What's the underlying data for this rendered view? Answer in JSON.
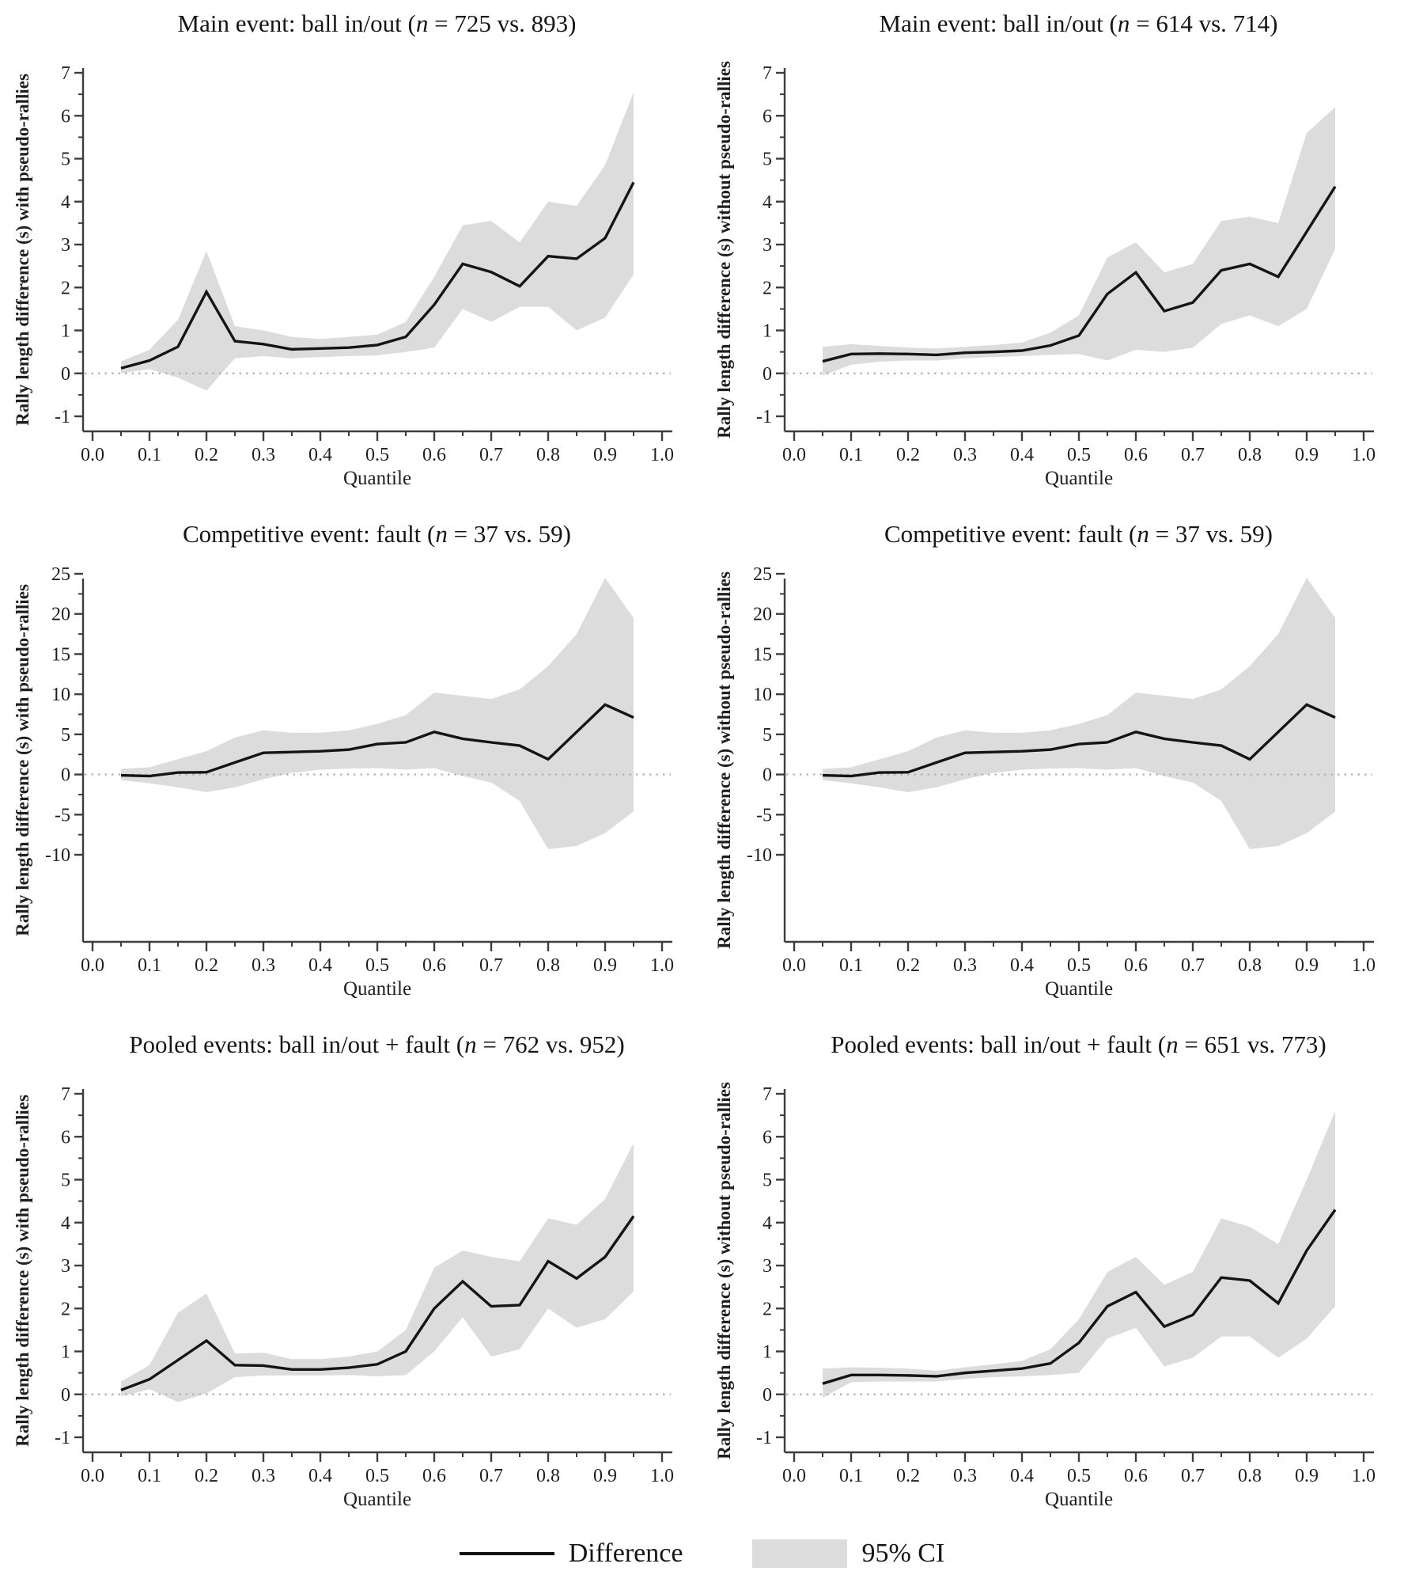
{
  "page": {
    "background": "#ffffff"
  },
  "legend": {
    "difference_label": "Difference",
    "ci_label": "95% CI",
    "line_color": "#141414",
    "band_color": "#dcdcdc",
    "zero_line_color": "#b0b0b0",
    "axis_color": "#3d3d3d"
  },
  "axes": {
    "xlabel": "Quantile",
    "xticks": [
      "0.0",
      "0.1",
      "0.2",
      "0.3",
      "0.4",
      "0.5",
      "0.6",
      "0.7",
      "0.8",
      "0.9",
      "1.0"
    ]
  },
  "chart_data": [
    {
      "type": "line",
      "title_pre": "Main event: ball in/out (",
      "title_n": "n",
      "title_post": " = 725 vs. 893)",
      "ylabel": "Rally length difference (s) with pseudo-rallies",
      "xlabel": "Quantile",
      "xlim": [
        0,
        1
      ],
      "ylim": [
        -1,
        7
      ],
      "yticks": [
        -1,
        0,
        1,
        2,
        3,
        4,
        5,
        6,
        7
      ],
      "yminor": 0.5,
      "legend_position": "bottom-shared",
      "grid": false,
      "x": [
        0.05,
        0.1,
        0.15,
        0.2,
        0.25,
        0.3,
        0.35,
        0.4,
        0.45,
        0.5,
        0.55,
        0.6,
        0.65,
        0.7,
        0.75,
        0.8,
        0.85,
        0.9,
        0.95
      ],
      "series": [
        {
          "name": "Difference",
          "values": [
            0.12,
            0.3,
            0.62,
            1.9,
            0.75,
            0.68,
            0.56,
            0.58,
            0.6,
            0.66,
            0.85,
            1.6,
            2.55,
            2.36,
            2.03,
            2.73,
            2.67,
            3.15,
            4.45
          ]
        },
        {
          "name": "95% CI upper",
          "values": [
            0.28,
            0.55,
            1.25,
            2.85,
            1.1,
            1.0,
            0.85,
            0.8,
            0.85,
            0.9,
            1.2,
            2.25,
            3.45,
            3.55,
            3.05,
            4.0,
            3.9,
            4.85,
            6.55
          ]
        },
        {
          "name": "95% CI lower",
          "values": [
            0.0,
            0.1,
            -0.1,
            -0.4,
            0.35,
            0.4,
            0.35,
            0.38,
            0.4,
            0.42,
            0.5,
            0.6,
            1.5,
            1.2,
            1.55,
            1.55,
            1.0,
            1.3,
            2.3
          ]
        }
      ]
    },
    {
      "type": "line",
      "title_pre": "Main event: ball in/out (",
      "title_n": "n",
      "title_post": " = 614 vs. 714)",
      "ylabel": "Rally length difference (s) without pseudo-rallies",
      "xlabel": "Quantile",
      "xlim": [
        0,
        1
      ],
      "ylim": [
        -1,
        7
      ],
      "yticks": [
        -1,
        0,
        1,
        2,
        3,
        4,
        5,
        6,
        7
      ],
      "yminor": 0.5,
      "legend_position": "bottom-shared",
      "grid": false,
      "x": [
        0.05,
        0.1,
        0.15,
        0.2,
        0.25,
        0.3,
        0.35,
        0.4,
        0.45,
        0.5,
        0.55,
        0.6,
        0.65,
        0.7,
        0.75,
        0.8,
        0.85,
        0.9,
        0.95
      ],
      "series": [
        {
          "name": "Difference",
          "values": [
            0.28,
            0.45,
            0.46,
            0.45,
            0.43,
            0.48,
            0.5,
            0.53,
            0.65,
            0.88,
            1.85,
            2.35,
            1.45,
            1.65,
            2.4,
            2.55,
            2.25,
            3.3,
            4.35
          ]
        },
        {
          "name": "95% CI upper",
          "values": [
            0.62,
            0.68,
            0.64,
            0.6,
            0.58,
            0.62,
            0.66,
            0.72,
            0.95,
            1.35,
            2.7,
            3.05,
            2.35,
            2.55,
            3.55,
            3.65,
            3.5,
            5.6,
            6.2
          ]
        },
        {
          "name": "95% CI lower",
          "values": [
            -0.05,
            0.2,
            0.27,
            0.3,
            0.3,
            0.35,
            0.38,
            0.4,
            0.43,
            0.45,
            0.3,
            0.55,
            0.5,
            0.6,
            1.15,
            1.35,
            1.1,
            1.5,
            2.9
          ]
        }
      ]
    },
    {
      "type": "line",
      "title_pre": "Competitive event: fault (",
      "title_n": "n",
      "title_post": " = 37 vs. 59)",
      "ylabel": "Rally length difference (s) with pseudo-rallies",
      "xlabel": "Quantile",
      "xlim": [
        0,
        1
      ],
      "ylim": [
        -10,
        25
      ],
      "yticks": [
        -10,
        -5,
        0,
        5,
        10,
        15,
        20,
        25
      ],
      "yminor": 2.5,
      "legend_position": "bottom-shared",
      "grid": false,
      "x": [
        0.05,
        0.1,
        0.15,
        0.2,
        0.25,
        0.3,
        0.35,
        0.4,
        0.45,
        0.5,
        0.55,
        0.6,
        0.65,
        0.7,
        0.75,
        0.8,
        0.85,
        0.9,
        0.95
      ],
      "series": [
        {
          "name": "Difference",
          "values": [
            -0.1,
            -0.2,
            0.25,
            0.28,
            1.5,
            2.7,
            2.8,
            2.9,
            3.1,
            3.8,
            4.0,
            5.3,
            4.45,
            4.0,
            3.6,
            1.9,
            5.3,
            8.7,
            7.1
          ]
        },
        {
          "name": "95% CI upper",
          "values": [
            0.7,
            0.9,
            1.9,
            2.9,
            4.6,
            5.5,
            5.2,
            5.2,
            5.5,
            6.3,
            7.4,
            10.2,
            9.8,
            9.4,
            10.6,
            13.5,
            17.5,
            24.5,
            19.5
          ]
        },
        {
          "name": "95% CI lower",
          "values": [
            -0.7,
            -1.1,
            -1.6,
            -2.2,
            -1.6,
            -0.6,
            0.2,
            0.6,
            0.75,
            0.8,
            0.6,
            0.8,
            -0.2,
            -1.0,
            -3.3,
            -9.3,
            -8.9,
            -7.3,
            -4.6
          ]
        }
      ]
    },
    {
      "type": "line",
      "title_pre": "Competitive event: fault (",
      "title_n": "n",
      "title_post": " = 37 vs. 59)",
      "ylabel": "Rally length difference (s) without pseudo-rallies",
      "xlabel": "Quantile",
      "xlim": [
        0,
        1
      ],
      "ylim": [
        -10,
        25
      ],
      "yticks": [
        -10,
        -5,
        0,
        5,
        10,
        15,
        20,
        25
      ],
      "yminor": 2.5,
      "legend_position": "bottom-shared",
      "grid": false,
      "x": [
        0.05,
        0.1,
        0.15,
        0.2,
        0.25,
        0.3,
        0.35,
        0.4,
        0.45,
        0.5,
        0.55,
        0.6,
        0.65,
        0.7,
        0.75,
        0.8,
        0.85,
        0.9,
        0.95
      ],
      "series": [
        {
          "name": "Difference",
          "values": [
            -0.1,
            -0.2,
            0.25,
            0.28,
            1.5,
            2.7,
            2.8,
            2.9,
            3.1,
            3.8,
            4.0,
            5.3,
            4.45,
            4.0,
            3.6,
            1.9,
            5.3,
            8.7,
            7.1
          ]
        },
        {
          "name": "95% CI upper",
          "values": [
            0.7,
            0.9,
            1.9,
            2.9,
            4.6,
            5.5,
            5.2,
            5.2,
            5.5,
            6.3,
            7.4,
            10.2,
            9.8,
            9.4,
            10.6,
            13.5,
            17.5,
            24.5,
            19.5
          ]
        },
        {
          "name": "95% CI lower",
          "values": [
            -0.7,
            -1.1,
            -1.6,
            -2.2,
            -1.6,
            -0.6,
            0.2,
            0.6,
            0.75,
            0.8,
            0.6,
            0.8,
            -0.2,
            -1.0,
            -3.3,
            -9.3,
            -8.9,
            -7.3,
            -4.6
          ]
        }
      ]
    },
    {
      "type": "line",
      "title_pre": "Pooled events: ball in/out + fault (",
      "title_n": "n",
      "title_post": " = 762 vs. 952)",
      "ylabel": "Rally length difference (s) with pseudo-rallies",
      "xlabel": "Quantile",
      "xlim": [
        0,
        1
      ],
      "ylim": [
        -1,
        7
      ],
      "yticks": [
        -1,
        0,
        1,
        2,
        3,
        4,
        5,
        6,
        7
      ],
      "yminor": 0.5,
      "legend_position": "bottom-shared",
      "grid": false,
      "x": [
        0.05,
        0.1,
        0.15,
        0.2,
        0.25,
        0.3,
        0.35,
        0.4,
        0.45,
        0.5,
        0.55,
        0.6,
        0.65,
        0.7,
        0.75,
        0.8,
        0.85,
        0.9,
        0.95
      ],
      "series": [
        {
          "name": "Difference",
          "values": [
            0.1,
            0.35,
            0.8,
            1.25,
            0.68,
            0.67,
            0.58,
            0.58,
            0.62,
            0.7,
            1.0,
            2.0,
            2.63,
            2.05,
            2.08,
            3.1,
            2.7,
            3.2,
            4.15
          ]
        },
        {
          "name": "95% CI upper",
          "values": [
            0.3,
            0.68,
            1.9,
            2.35,
            0.95,
            0.97,
            0.82,
            0.82,
            0.88,
            1.0,
            1.5,
            2.95,
            3.35,
            3.2,
            3.1,
            4.1,
            3.95,
            4.55,
            5.85
          ]
        },
        {
          "name": "95% CI lower",
          "values": [
            -0.05,
            0.12,
            -0.18,
            0.02,
            0.4,
            0.44,
            0.44,
            0.44,
            0.45,
            0.42,
            0.45,
            1.0,
            1.8,
            0.88,
            1.05,
            2.0,
            1.55,
            1.75,
            2.4
          ]
        }
      ]
    },
    {
      "type": "line",
      "title_pre": "Pooled events: ball in/out + fault (",
      "title_n": "n",
      "title_post": " = 651 vs. 773)",
      "ylabel": "Rally length difference (s) without pseudo-rallies",
      "xlabel": "Quantile",
      "xlim": [
        0,
        1
      ],
      "ylim": [
        -1,
        7
      ],
      "yticks": [
        -1,
        0,
        1,
        2,
        3,
        4,
        5,
        6,
        7
      ],
      "yminor": 0.5,
      "legend_position": "bottom-shared",
      "grid": false,
      "x": [
        0.05,
        0.1,
        0.15,
        0.2,
        0.25,
        0.3,
        0.35,
        0.4,
        0.45,
        0.5,
        0.55,
        0.6,
        0.65,
        0.7,
        0.75,
        0.8,
        0.85,
        0.9,
        0.95
      ],
      "series": [
        {
          "name": "Difference",
          "values": [
            0.25,
            0.45,
            0.45,
            0.44,
            0.42,
            0.5,
            0.55,
            0.6,
            0.72,
            1.2,
            2.05,
            2.38,
            1.58,
            1.85,
            2.72,
            2.65,
            2.12,
            3.35,
            4.3
          ]
        },
        {
          "name": "95% CI upper",
          "values": [
            0.6,
            0.63,
            0.62,
            0.6,
            0.55,
            0.63,
            0.7,
            0.78,
            1.05,
            1.75,
            2.85,
            3.2,
            2.55,
            2.85,
            4.1,
            3.9,
            3.5,
            5.0,
            6.6
          ]
        },
        {
          "name": "95% CI lower",
          "values": [
            -0.08,
            0.28,
            0.3,
            0.3,
            0.3,
            0.36,
            0.4,
            0.42,
            0.45,
            0.5,
            1.3,
            1.55,
            0.65,
            0.85,
            1.35,
            1.35,
            0.85,
            1.3,
            2.05
          ]
        }
      ]
    }
  ]
}
